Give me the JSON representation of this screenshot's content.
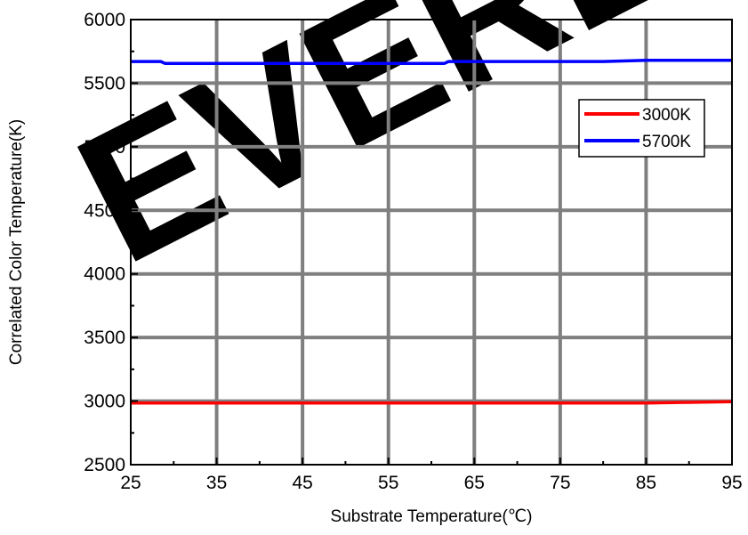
{
  "chart_data": {
    "type": "line",
    "xlabel": "Substrate Temperature(℃)",
    "ylabel": "Correlated Color Temperature(K)",
    "xlim": [
      25,
      95
    ],
    "ylim": [
      2500,
      6000
    ],
    "xticks": [
      25,
      35,
      45,
      55,
      65,
      75,
      85,
      95
    ],
    "yticks": [
      2500,
      3000,
      3500,
      4000,
      4500,
      5000,
      5500,
      6000
    ],
    "grid": true,
    "legend_position": "top-right",
    "series": [
      {
        "name": "3000K",
        "color": "#ff0000",
        "x": [
          25,
          30,
          40,
          50,
          60,
          70,
          80,
          85,
          90,
          95
        ],
        "y": [
          2985,
          2985,
          2985,
          2985,
          2985,
          2985,
          2985,
          2985,
          2990,
          2995
        ]
      },
      {
        "name": "5700K",
        "color": "#0000ff",
        "x": [
          25,
          28.5,
          29,
          35,
          45,
          55,
          61.5,
          62,
          70,
          80,
          85,
          95
        ],
        "y": [
          5670,
          5670,
          5655,
          5655,
          5655,
          5655,
          5655,
          5670,
          5670,
          5670,
          5680,
          5680
        ]
      }
    ],
    "watermark": "EVERL"
  }
}
